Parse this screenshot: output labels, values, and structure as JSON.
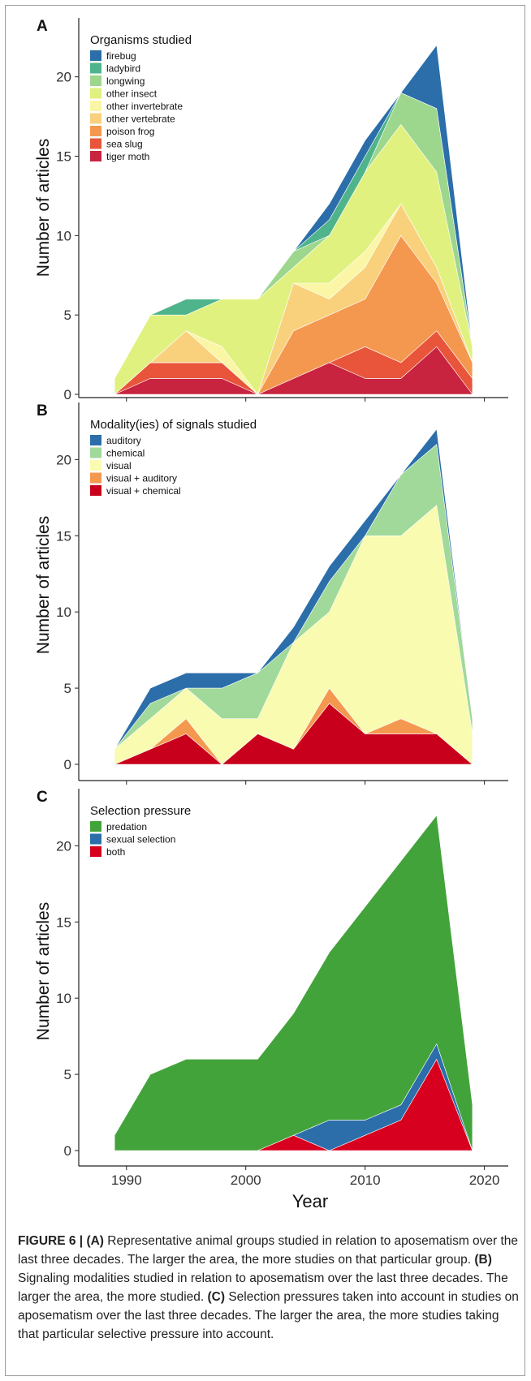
{
  "caption": {
    "fig_label": "FIGURE 6 |",
    "A_label": "(A)",
    "A_text": "Representative animal groups studied in relation to aposematism over the last three decades. The larger the area, the more studies on that particular group.",
    "B_label": "(B)",
    "B_text": "Signaling modalities studied in relation to aposematism over the last three decades. The larger the area, the more studied.",
    "C_label": "(C)",
    "C_text": "Selection pressures taken into account in studies on aposematism over the last three decades. The larger the area, the more studies taking that particular selective pressure into account."
  },
  "x_axis": {
    "label": "Year",
    "ticks": [
      "1990",
      "2000",
      "2010",
      "2020"
    ],
    "tick_values": [
      1990,
      2000,
      2010,
      2020
    ],
    "range": [
      1986,
      2022
    ]
  },
  "chart_data": [
    {
      "type": "area",
      "panel": "A",
      "ylabel": "Number of articles",
      "ylim": [
        0,
        23
      ],
      "y_ticks": [
        0,
        5,
        10,
        15,
        20
      ],
      "legend_title": "Organisms studied",
      "legend_position": "top-left",
      "x": [
        1989,
        1992,
        1995,
        1998,
        2001,
        2004,
        2007,
        2010,
        2013,
        2016,
        2019
      ],
      "series": [
        {
          "name": "tiger moth",
          "color": "#c8233f",
          "values": [
            0,
            1,
            1,
            1,
            0,
            1,
            2,
            1,
            1,
            3,
            0
          ]
        },
        {
          "name": "sea slug",
          "color": "#e8553a",
          "values": [
            0,
            1,
            1,
            1,
            0,
            0,
            0,
            2,
            1,
            1,
            1
          ]
        },
        {
          "name": "poison frog",
          "color": "#f5984f",
          "values": [
            0,
            0,
            0,
            0,
            0,
            3,
            3,
            3,
            8,
            3,
            1
          ]
        },
        {
          "name": "other vertebrate",
          "color": "#f9d17c",
          "values": [
            0,
            0,
            2,
            0,
            0,
            3,
            1,
            2,
            2,
            1,
            0
          ]
        },
        {
          "name": "other invertebrate",
          "color": "#fbf6a6",
          "values": [
            0,
            0,
            0,
            1,
            0,
            0,
            1,
            1,
            0,
            0,
            0
          ]
        },
        {
          "name": "other insect",
          "color": "#e1f17f",
          "values": [
            1,
            3,
            1,
            3,
            6,
            1,
            3,
            5,
            5,
            6,
            1
          ]
        },
        {
          "name": "longwing",
          "color": "#9dd68d",
          "values": [
            0,
            0,
            0,
            0,
            0,
            1,
            0,
            0,
            2,
            4,
            0
          ]
        },
        {
          "name": "ladybird",
          "color": "#4fb48c",
          "values": [
            0,
            0,
            1,
            0,
            0,
            0,
            1,
            1,
            0,
            0,
            0
          ]
        },
        {
          "name": "firebug",
          "color": "#2b6ea9",
          "values": [
            0,
            0,
            0,
            0,
            0,
            0,
            1,
            1,
            0,
            4,
            0
          ]
        }
      ]
    },
    {
      "type": "area",
      "panel": "B",
      "ylabel": "Number of articles",
      "ylim": [
        0,
        23
      ],
      "y_ticks": [
        0,
        5,
        10,
        15,
        20
      ],
      "legend_title": "Modality(ies) of signals studied",
      "legend_position": "top-left",
      "x": [
        1989,
        1992,
        1995,
        1998,
        2001,
        2004,
        2007,
        2010,
        2013,
        2016,
        2019
      ],
      "series": [
        {
          "name": "visual + chemical",
          "color": "#c9001b",
          "values": [
            0,
            1,
            2,
            0,
            2,
            1,
            4,
            2,
            2,
            2,
            0
          ]
        },
        {
          "name": "visual + auditory",
          "color": "#f5984f",
          "values": [
            0,
            0,
            1,
            0,
            0,
            0,
            1,
            0,
            1,
            0,
            0
          ]
        },
        {
          "name": "visual",
          "color": "#f9fbb1",
          "values": [
            1,
            2,
            2,
            3,
            1,
            7,
            5,
            13,
            12,
            15,
            2
          ]
        },
        {
          "name": "chemical",
          "color": "#a1d99a",
          "values": [
            0,
            1,
            0,
            2,
            3,
            0,
            2,
            0,
            4,
            4,
            1
          ]
        },
        {
          "name": "auditory",
          "color": "#2b6ea9",
          "values": [
            0,
            1,
            1,
            1,
            0,
            1,
            1,
            1,
            0,
            1,
            0
          ]
        }
      ]
    },
    {
      "type": "area",
      "panel": "C",
      "ylabel": "Number of articles",
      "ylim": [
        0,
        23
      ],
      "y_ticks": [
        0,
        5,
        10,
        15,
        20
      ],
      "legend_title": "Selection pressure",
      "legend_position": "top-left",
      "x": [
        1989,
        1992,
        1995,
        1998,
        2001,
        2004,
        2007,
        2010,
        2013,
        2016,
        2019
      ],
      "series": [
        {
          "name": "both",
          "color": "#d8001f",
          "values": [
            0,
            0,
            0,
            0,
            0,
            1,
            0,
            1,
            2,
            6,
            0
          ]
        },
        {
          "name": "sexual selection",
          "color": "#2b6ea9",
          "values": [
            0,
            0,
            0,
            0,
            0,
            0,
            2,
            1,
            1,
            1,
            0
          ]
        },
        {
          "name": "predation",
          "color": "#43a33b",
          "values": [
            1,
            5,
            6,
            6,
            6,
            8,
            11,
            14,
            16,
            15,
            3
          ]
        }
      ]
    }
  ]
}
